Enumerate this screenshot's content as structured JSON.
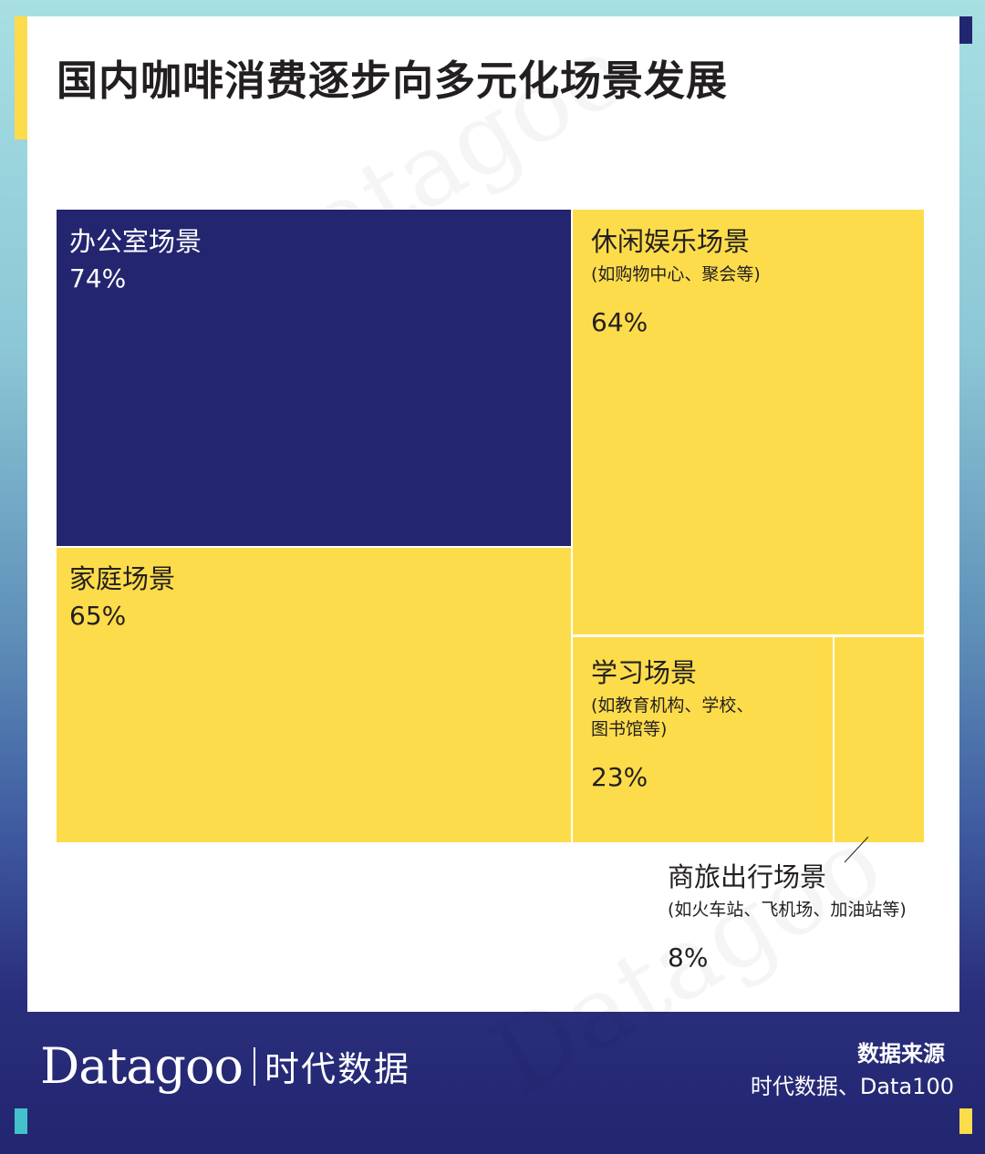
{
  "title": "国内咖啡消费逐步向多元化场景发展",
  "watermark": "Datagoo|时代数据",
  "chart_data": {
    "type": "treemap",
    "unit": "%",
    "items": [
      {
        "label": "办公室场景",
        "note": "",
        "value": 74,
        "value_text": "74%",
        "color": "#23256f"
      },
      {
        "label": "家庭场景",
        "note": "",
        "value": 65,
        "value_text": "65%",
        "color": "#fddc4b"
      },
      {
        "label": "休闲娱乐场景",
        "note": "(如购物中心、聚会等)",
        "value": 64,
        "value_text": "64%",
        "color": "#fddc4b"
      },
      {
        "label": "学习场景",
        "note": "(如教育机构、学校、\n图书馆等)",
        "value": 23,
        "value_text": "23%",
        "color": "#fddc4b"
      },
      {
        "label": "商旅出行场景",
        "note": "(如火车站、飞机场、加油站等)",
        "value": 8,
        "value_text": "8%",
        "color": "#fddc4b"
      }
    ]
  },
  "footer": {
    "brand_name": "Datagoo",
    "brand_cn": "时代数据",
    "source_title": "数据来源",
    "source_text": "时代数据、Data100"
  }
}
